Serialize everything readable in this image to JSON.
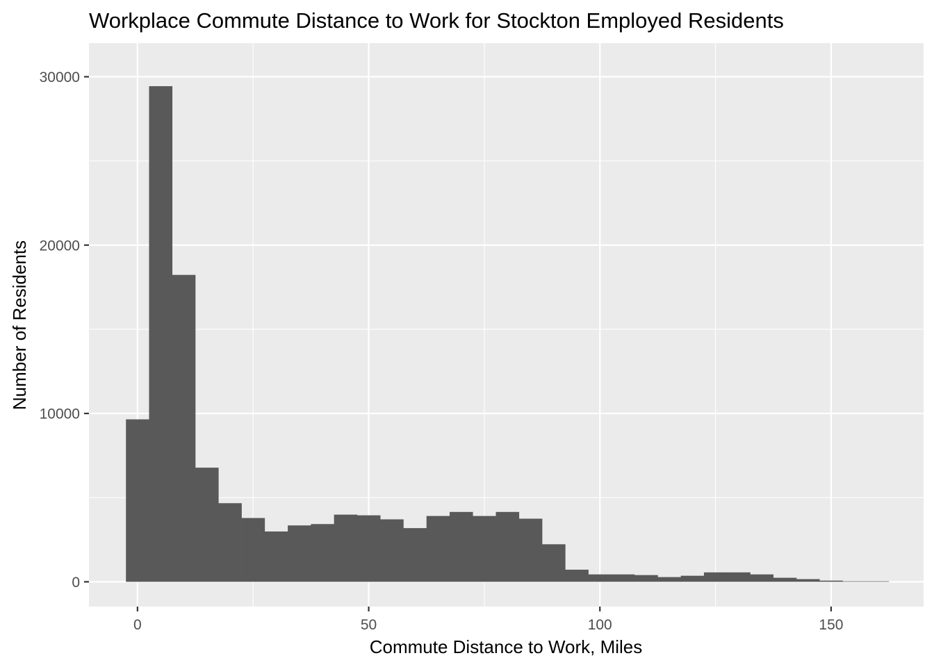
{
  "chart_data": {
    "type": "bar",
    "subtype": "histogram",
    "title": "Workplace Commute Distance to Work for Stockton Employed Residents",
    "xlabel": "Commute Distance to Work, Miles",
    "ylabel": "Number of Residents",
    "bin_width": 5,
    "bin_centers": [
      0,
      5,
      10,
      15,
      20,
      25,
      30,
      35,
      40,
      45,
      50,
      55,
      60,
      65,
      70,
      75,
      80,
      85,
      90,
      95,
      100,
      105,
      110,
      115,
      120,
      125,
      130,
      135,
      140,
      145,
      150,
      155,
      160
    ],
    "values": [
      9650,
      29440,
      18230,
      6780,
      4670,
      3790,
      2990,
      3350,
      3430,
      3990,
      3950,
      3710,
      3190,
      3910,
      4150,
      3910,
      4150,
      3750,
      2230,
      720,
      440,
      440,
      400,
      280,
      360,
      560,
      560,
      440,
      240,
      160,
      70,
      30,
      30
    ],
    "xlim": [
      -10.5,
      170
    ],
    "ylim": [
      -1470,
      32000
    ],
    "x_ticks": [
      0,
      50,
      100,
      150
    ],
    "x_tick_labels": [
      "0",
      "50",
      "100",
      "150"
    ],
    "y_ticks": [
      0,
      10000,
      20000,
      30000
    ],
    "y_tick_labels": [
      "0",
      "10000",
      "20000",
      "30000"
    ],
    "grid": true,
    "legend": null,
    "colors": {
      "bar": "#595959",
      "panel": "#ebebeb",
      "grid": "#ffffff",
      "tick": "#333333",
      "tick_text": "#4d4d4d"
    }
  }
}
